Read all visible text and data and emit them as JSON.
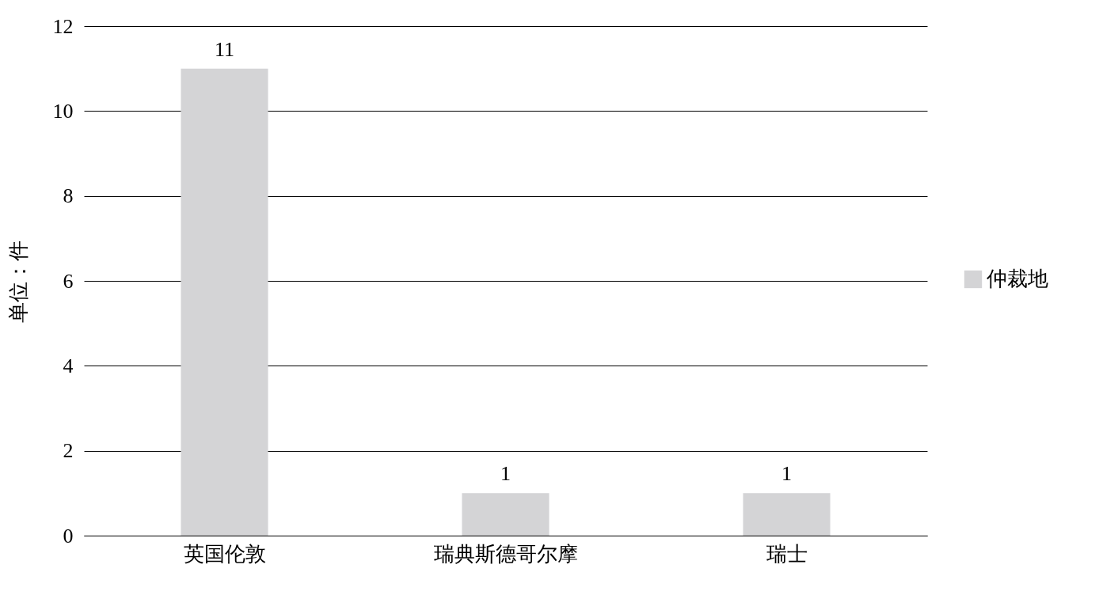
{
  "chart_data": {
    "type": "bar",
    "ylabel": "单位：件",
    "categories": [
      "英国伦敦",
      "瑞典斯德哥尔摩",
      "瑞士"
    ],
    "series": [
      {
        "name": "仲裁地",
        "color": "#d4d4d6",
        "values": [
          11,
          1,
          1
        ]
      }
    ],
    "ylim": [
      0,
      12
    ],
    "yticks": [
      0,
      2,
      4,
      6,
      8,
      10,
      12
    ],
    "grid": "y",
    "legend": "right",
    "data_labels": true
  }
}
